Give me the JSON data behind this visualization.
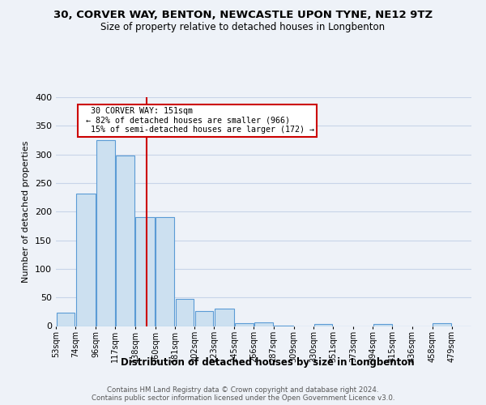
{
  "title_line1": "30, CORVER WAY, BENTON, NEWCASTLE UPON TYNE, NE12 9TZ",
  "title_line2": "Size of property relative to detached houses in Longbenton",
  "xlabel": "Distribution of detached houses by size in Longbenton",
  "ylabel": "Number of detached properties",
  "footer_line1": "Contains HM Land Registry data © Crown copyright and database right 2024.",
  "footer_line2": "Contains public sector information licensed under the Open Government Licence v3.0.",
  "bar_color": "#cce0f0",
  "bar_edge_color": "#5b9bd5",
  "grid_color": "#c8d4e8",
  "vline_color": "#cc0000",
  "vline_value": 151,
  "annotation_text": "  30 CORVER WAY: 151sqm  \n ← 82% of detached houses are smaller (966)\n  15% of semi-detached houses are larger (172) →",
  "annotation_box_color": "#ffffff",
  "annotation_box_edge": "#cc0000",
  "categories": [
    "53sqm",
    "74sqm",
    "96sqm",
    "117sqm",
    "138sqm",
    "160sqm",
    "181sqm",
    "202sqm",
    "223sqm",
    "245sqm",
    "266sqm",
    "287sqm",
    "309sqm",
    "330sqm",
    "351sqm",
    "373sqm",
    "394sqm",
    "415sqm",
    "436sqm",
    "458sqm",
    "479sqm"
  ],
  "bin_edges": [
    53,
    74,
    96,
    117,
    138,
    160,
    181,
    202,
    223,
    245,
    266,
    287,
    309,
    330,
    351,
    373,
    394,
    415,
    436,
    458,
    479,
    500
  ],
  "values": [
    24,
    232,
    325,
    298,
    190,
    190,
    47,
    26,
    30,
    5,
    6,
    1,
    0,
    4,
    0,
    0,
    4,
    0,
    0,
    5,
    0
  ],
  "ylim": [
    0,
    400
  ],
  "yticks": [
    0,
    50,
    100,
    150,
    200,
    250,
    300,
    350,
    400
  ],
  "background_color": "#eef2f8"
}
